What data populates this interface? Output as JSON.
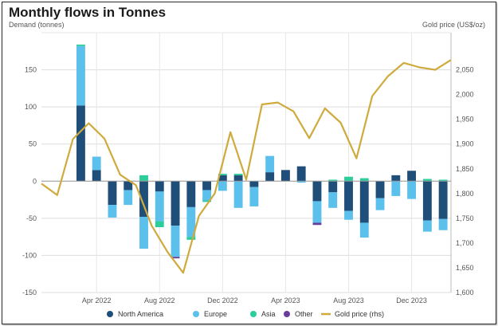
{
  "chart_data": {
    "type": "bar",
    "title": "Monthly flows in Tonnes",
    "ylabel": "Demand (tonnes)",
    "y2label": "Gold price (US$/oz)",
    "categories": [
      "Jan 2022",
      "Feb 2022",
      "Mar 2022",
      "Apr 2022",
      "May 2022",
      "Jun 2022",
      "Jul 2022",
      "Aug 2022",
      "Sep 2022",
      "Oct 2022",
      "Nov 2022",
      "Dec 2022",
      "Jan 2023",
      "Feb 2023",
      "Mar 2023",
      "Apr 2023",
      "May 2023",
      "Jun 2023",
      "Jul 2023",
      "Aug 2023",
      "Sep 2023",
      "Oct 2023",
      "Nov 2023",
      "Dec 2023",
      "Jan 2024",
      "Feb 2024"
    ],
    "x_tick_labels": [
      {
        "label": "Apr 2022",
        "index": 3
      },
      {
        "label": "Aug 2022",
        "index": 7
      },
      {
        "label": "Dec 2022",
        "index": 11
      },
      {
        "label": "Apr 2023",
        "index": 15
      },
      {
        "label": "Aug 2023",
        "index": 19
      },
      {
        "label": "Dec 2023",
        "index": 23
      }
    ],
    "ylim": [
      -150,
      200
    ],
    "y_ticks": [
      150,
      100,
      50,
      0,
      -50,
      -100,
      -150
    ],
    "y2lim": [
      1600,
      2125
    ],
    "y2_ticks": [
      2050,
      2000,
      1950,
      1900,
      1850,
      1800,
      1750,
      1700,
      1650,
      1600
    ],
    "y2_tick_labels": [
      "2,050",
      "2,000",
      "1,950",
      "1,900",
      "1,850",
      "1,800",
      "1,750",
      "1,700",
      "1,650",
      "1,600"
    ],
    "grid": true,
    "legend_position": "bottom",
    "stacked": true,
    "series": [
      {
        "name": "North America",
        "color": "#1f4e79",
        "values": [
          null,
          null,
          102,
          15,
          -32,
          -12,
          -48,
          -14,
          -60,
          -35,
          -12,
          8,
          8,
          -8,
          12,
          15,
          20,
          -27,
          -15,
          -40,
          -56,
          -23,
          8,
          14,
          -53,
          -51
        ]
      },
      {
        "name": "Europe",
        "color": "#5bc0eb",
        "values": [
          null,
          null,
          80,
          18,
          -17,
          -20,
          -43,
          -40,
          -42,
          -40,
          -14,
          -13,
          -36,
          -26,
          22,
          0,
          -2,
          -29,
          -21,
          -12,
          -20,
          -16,
          -20,
          -24,
          -15,
          -15
        ]
      },
      {
        "name": "Asia",
        "color": "#2ccd9a",
        "values": [
          null,
          null,
          2,
          0,
          0,
          0,
          8,
          -8,
          0,
          -4,
          -2,
          2,
          2,
          0,
          0,
          0,
          0,
          0,
          2,
          6,
          4,
          0,
          0,
          0,
          3,
          2
        ]
      },
      {
        "name": "Other",
        "color": "#6a3d9a",
        "values": [
          null,
          null,
          0,
          0,
          0,
          0,
          0,
          0,
          -2,
          0,
          0,
          0,
          0,
          0,
          0,
          0,
          0,
          -3,
          0,
          0,
          0,
          0,
          0,
          0,
          0,
          0
        ]
      }
    ],
    "line_series": {
      "name": "Gold price (rhs)",
      "color": "#cfaa3c",
      "axis": "rhs",
      "x": [
        -0.5,
        0.5,
        1.5,
        2.5,
        3.5,
        4.5,
        5.5,
        6.5,
        7.5,
        8.5,
        9.5,
        10.5,
        11.5,
        12.5,
        13.5,
        14.5,
        15.5,
        16.5,
        17.5,
        18.5,
        19.5,
        20.5,
        21.5,
        22.5,
        23.5,
        24.5,
        25.5
      ],
      "values": [
        1820,
        1797,
        1910,
        1942,
        1911,
        1838,
        1817,
        1735,
        1682,
        1640,
        1755,
        1800,
        1924,
        1828,
        1980,
        1984,
        1966,
        1912,
        1972,
        1943,
        1871,
        1997,
        2037,
        2064,
        2055,
        2050,
        2070
      ]
    }
  }
}
